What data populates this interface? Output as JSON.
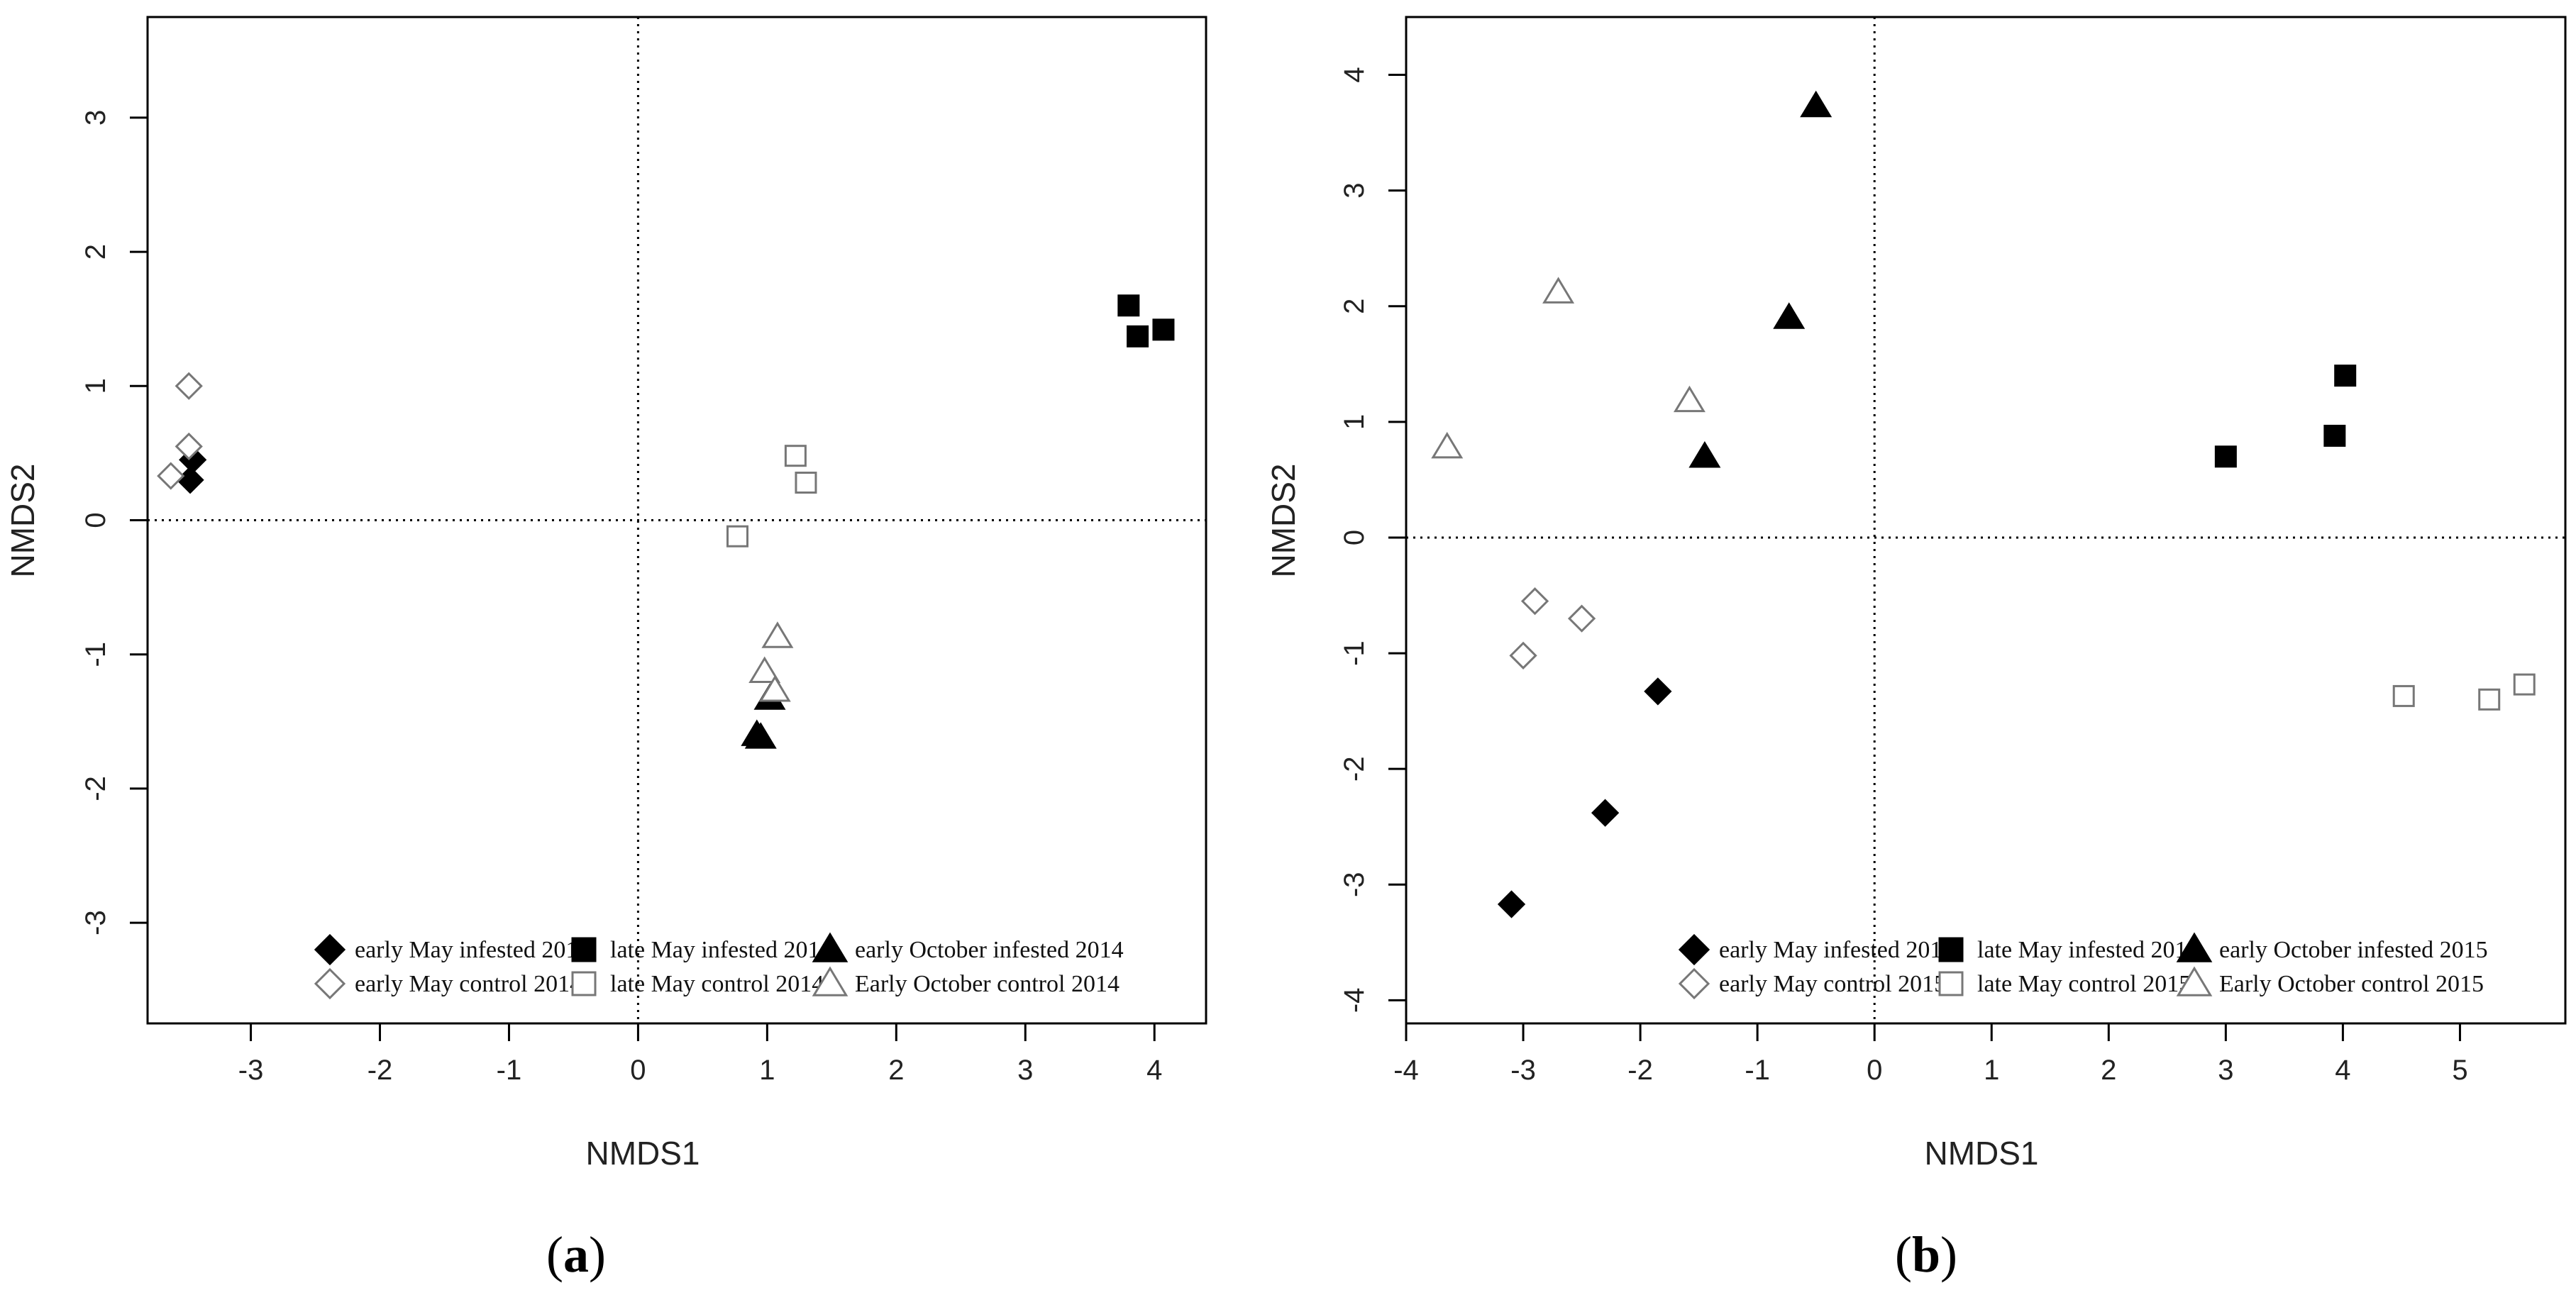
{
  "chart_data": [
    {
      "type": "scatter",
      "panel_label": "a",
      "xlabel": "NMDS1",
      "ylabel": "NMDS2",
      "xlim": [
        -3.8,
        4.4
      ],
      "ylim": [
        -3.75,
        3.75
      ],
      "xticks": [
        -3,
        -2,
        -1,
        0,
        1,
        2,
        3,
        4
      ],
      "yticks": [
        -3,
        -2,
        -1,
        0,
        1,
        2,
        3
      ],
      "xtick_labels": [
        "-3",
        "-2",
        "-1",
        "0",
        "1",
        "2",
        "3",
        "4"
      ],
      "ytick_labels": [
        "-3",
        "-2",
        "-1",
        "0",
        "1",
        "2",
        "3"
      ],
      "reference_lines": {
        "x": 0,
        "y": 0
      },
      "legend_position": "bottom-right",
      "series": [
        {
          "name": "early May infested 2014",
          "marker": "diamond",
          "filled": true,
          "points": [
            [
              -3.45,
              0.45
            ],
            [
              -3.47,
              0.3
            ]
          ]
        },
        {
          "name": "early May control 2014",
          "marker": "diamond",
          "filled": false,
          "points": [
            [
              -3.48,
              1.0
            ],
            [
              -3.48,
              0.55
            ],
            [
              -3.62,
              0.33
            ]
          ]
        },
        {
          "name": "late May infested 2014",
          "marker": "square",
          "filled": true,
          "points": [
            [
              3.8,
              1.6
            ],
            [
              3.87,
              1.37
            ],
            [
              4.07,
              1.42
            ]
          ]
        },
        {
          "name": "late May control 2014",
          "marker": "square",
          "filled": false,
          "points": [
            [
              1.22,
              0.48
            ],
            [
              1.3,
              0.28
            ],
            [
              0.77,
              -0.12
            ]
          ]
        },
        {
          "name": "early October infested 2014",
          "marker": "triangle",
          "filled": true,
          "points": [
            [
              1.02,
              -1.33
            ],
            [
              0.92,
              -1.6
            ],
            [
              0.95,
              -1.62
            ]
          ]
        },
        {
          "name": "Early October control 2014",
          "marker": "triangle",
          "filled": false,
          "points": [
            [
              1.08,
              -0.87
            ],
            [
              0.98,
              -1.13
            ],
            [
              1.06,
              -1.27
            ]
          ]
        }
      ]
    },
    {
      "type": "scatter",
      "panel_label": "b",
      "xlabel": "NMDS1",
      "ylabel": "NMDS2",
      "xlim": [
        -4.0,
        5.9
      ],
      "ylim": [
        -4.2,
        4.5
      ],
      "xticks": [
        -4,
        -3,
        -2,
        -1,
        0,
        1,
        2,
        3,
        4,
        5
      ],
      "yticks": [
        -4,
        -3,
        -2,
        -1,
        0,
        1,
        2,
        3,
        4
      ],
      "xtick_labels": [
        "-4",
        "-3",
        "-2",
        "-1",
        "0",
        "1",
        "2",
        "3",
        "4",
        "5"
      ],
      "ytick_labels": [
        "-4",
        "-3",
        "-2",
        "-1",
        "0",
        "1",
        "2",
        "3",
        "4"
      ],
      "reference_lines": {
        "x": 0,
        "y": 0
      },
      "legend_position": "bottom-right",
      "series": [
        {
          "name": "early May infested 2015",
          "marker": "diamond",
          "filled": true,
          "points": [
            [
              -1.85,
              -1.33
            ],
            [
              -2.3,
              -2.38
            ],
            [
              -3.1,
              -3.17
            ]
          ]
        },
        {
          "name": "early May control 2015",
          "marker": "diamond",
          "filled": false,
          "points": [
            [
              -2.9,
              -0.55
            ],
            [
              -2.5,
              -0.7
            ],
            [
              -3.0,
              -1.02
            ]
          ]
        },
        {
          "name": "late May infested 2015",
          "marker": "square",
          "filled": true,
          "points": [
            [
              4.02,
              1.4
            ],
            [
              3.93,
              0.88
            ],
            [
              3.0,
              0.7
            ]
          ]
        },
        {
          "name": "late May control 2015",
          "marker": "square",
          "filled": false,
          "points": [
            [
              4.52,
              -1.37
            ],
            [
              5.25,
              -1.4
            ],
            [
              5.55,
              -1.27
            ]
          ]
        },
        {
          "name": "early October infested 2015",
          "marker": "triangle",
          "filled": true,
          "points": [
            [
              -0.5,
              3.73
            ],
            [
              -0.73,
              1.9
            ],
            [
              -1.45,
              0.7
            ]
          ]
        },
        {
          "name": "Early October control 2015",
          "marker": "triangle",
          "filled": false,
          "points": [
            [
              -2.7,
              2.12
            ],
            [
              -1.58,
              1.18
            ],
            [
              -3.65,
              0.78
            ]
          ]
        }
      ]
    }
  ]
}
